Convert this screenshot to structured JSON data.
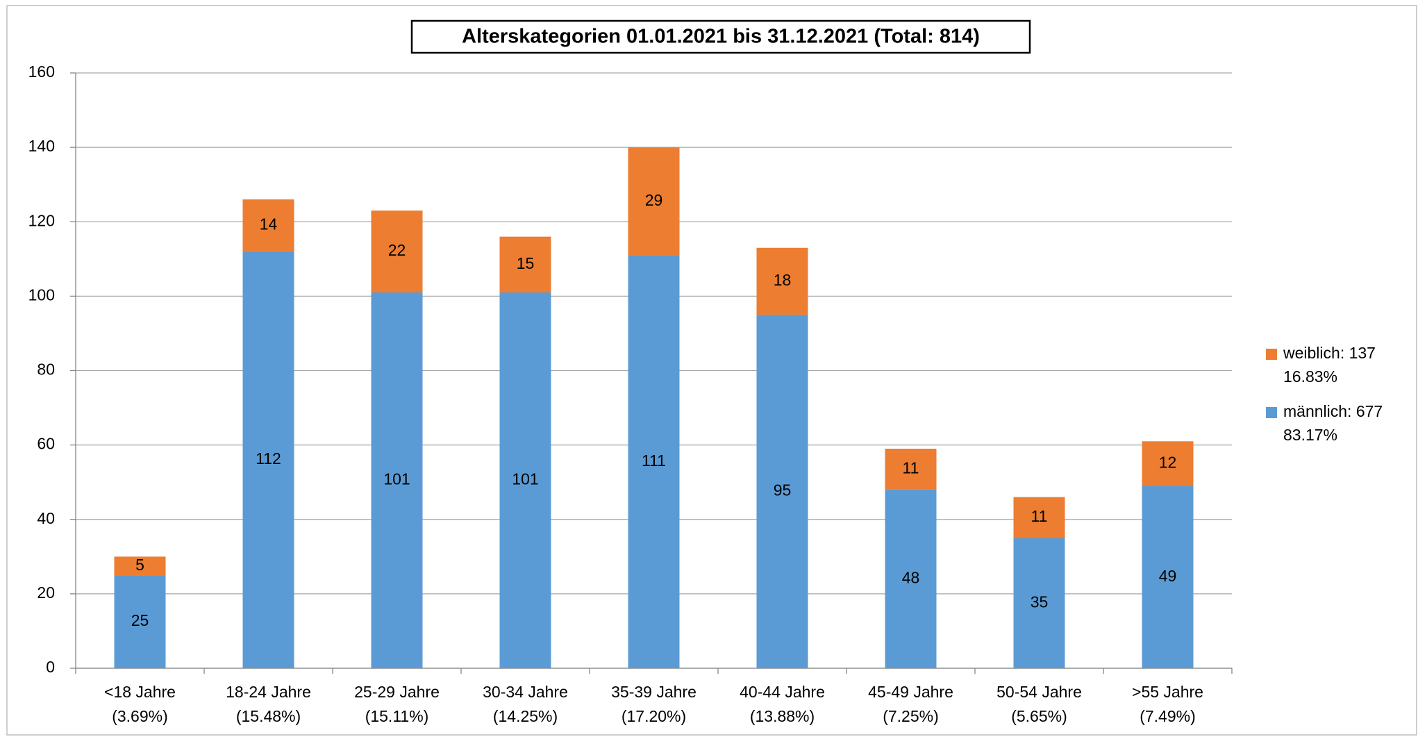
{
  "chart_data": {
    "type": "stacked_bar",
    "title": "Alterskategorien 01.01.2021 bis 31.12.2021 (Total: 814)",
    "categories": [
      [
        "<18 Jahre",
        "(3.69%)"
      ],
      [
        "18-24 Jahre",
        "(15.48%)"
      ],
      [
        "25-29 Jahre",
        "(15.11%)"
      ],
      [
        "30-34 Jahre",
        "(14.25%)"
      ],
      [
        "35-39 Jahre",
        "(17.20%)"
      ],
      [
        "40-44 Jahre",
        "(13.88%)"
      ],
      [
        "45-49 Jahre",
        "(7.25%)"
      ],
      [
        "50-54 Jahre",
        "(5.65%)"
      ],
      [
        ">55 Jahre",
        "(7.49%)"
      ]
    ],
    "series": [
      {
        "name": "männlich: 677",
        "share": "83.17%",
        "color": "#5b9bd5",
        "values": [
          25,
          112,
          101,
          101,
          111,
          95,
          48,
          35,
          49
        ]
      },
      {
        "name": "weiblich: 137",
        "share": "16.83%",
        "color": "#ed7d31",
        "values": [
          5,
          14,
          22,
          15,
          29,
          18,
          11,
          11,
          12
        ]
      }
    ],
    "ylim": [
      0,
      160
    ],
    "yticks": [
      0,
      20,
      40,
      60,
      80,
      100,
      120,
      140,
      160
    ],
    "grid": true,
    "legend": "right"
  }
}
